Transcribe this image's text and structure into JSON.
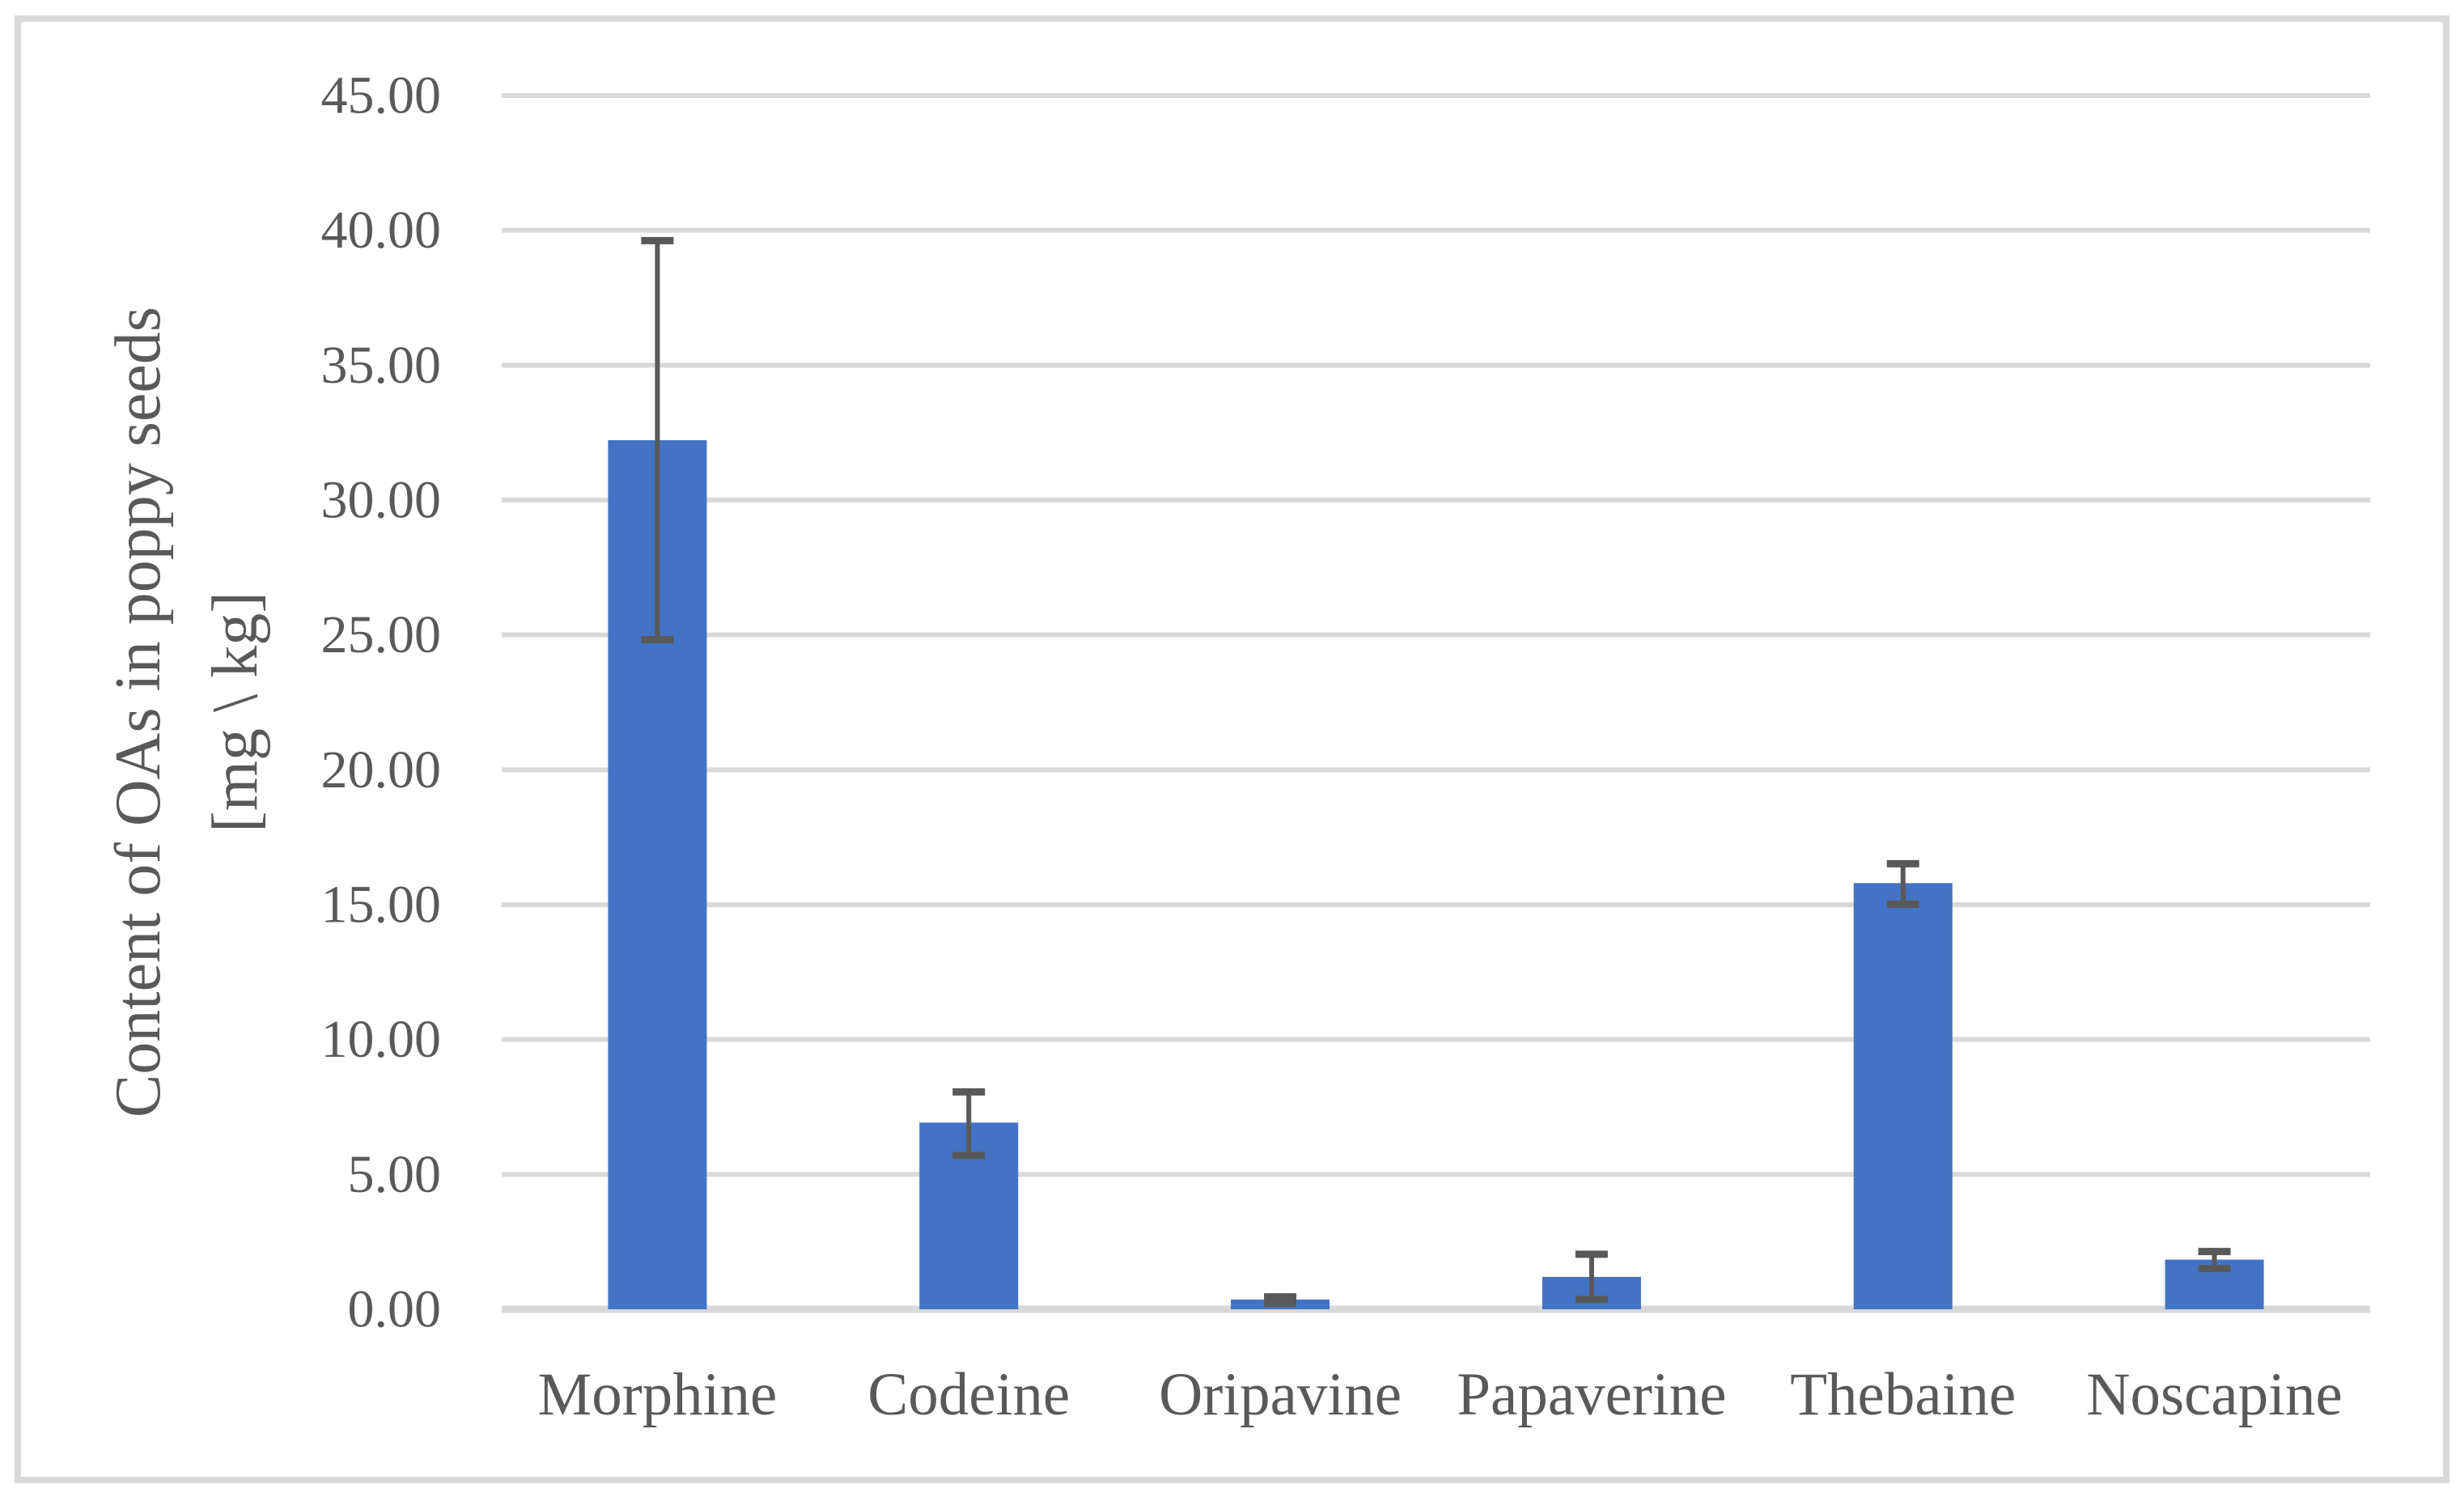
{
  "chart_data": {
    "type": "bar",
    "title": "",
    "ylabel_line1": "Content of OAs in poppy seeds",
    "ylabel_line2": "[mg \\ kg]",
    "xlabel": "",
    "categories": [
      "Morphine",
      "Codeine",
      "Oripavine",
      "Papaverine",
      "Thebaine",
      "Noscapine"
    ],
    "series": [
      {
        "name": "Content of OAs in poppy seeds [mg \\ kg]",
        "values": [
          32.22,
          6.92,
          0.36,
          1.2,
          15.8,
          1.84
        ],
        "error_low": [
          24.82,
          5.7,
          0.22,
          0.36,
          15.02,
          1.51
        ],
        "error_high": [
          39.62,
          8.06,
          0.46,
          2.04,
          16.52,
          2.14
        ]
      }
    ],
    "y_ticks": [
      "0.00",
      "5.00",
      "10.00",
      "15.00",
      "20.00",
      "25.00",
      "30.00",
      "35.00",
      "40.00",
      "45.00"
    ],
    "y_tick_values": [
      0,
      5,
      10,
      15,
      20,
      25,
      30,
      35,
      40,
      45
    ],
    "ylim": [
      0,
      45
    ],
    "grid": true,
    "legend_position": "none",
    "colors": {
      "bar": "#4472C4",
      "error_bar": "#595959",
      "grid_line": "#D9D9D9",
      "axis_line": "#D9D9D9",
      "tick_text": "#595959",
      "frame_border": "#D9D9D9",
      "background": "#FFFFFF"
    }
  }
}
